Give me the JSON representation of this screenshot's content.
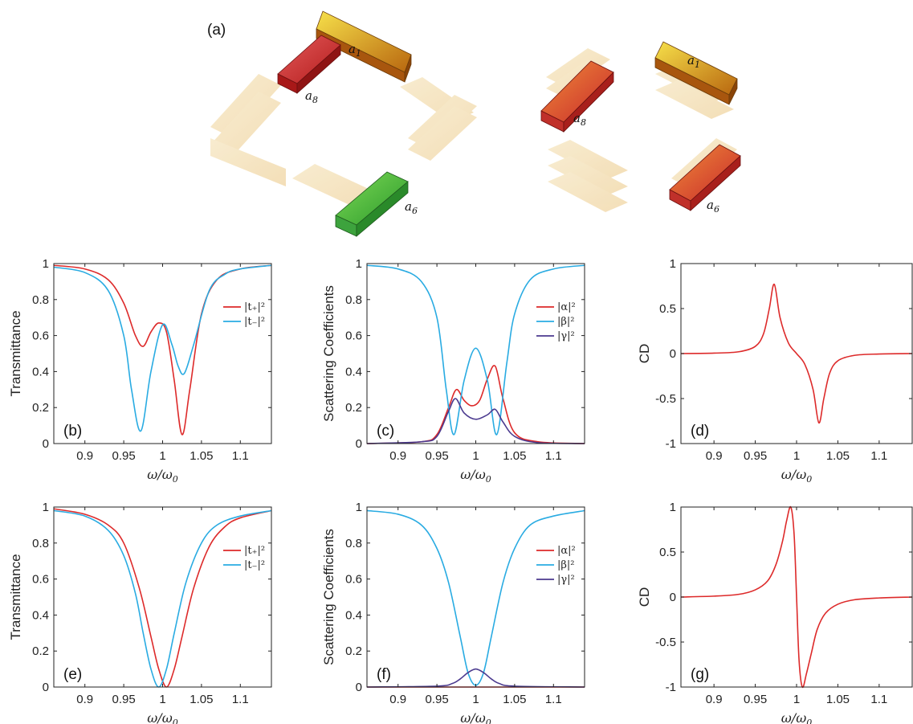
{
  "panel_a": {
    "label": "(a)",
    "bar_labels": [
      {
        "name": "a1",
        "text": "a",
        "sub": "1"
      },
      {
        "name": "a8",
        "text": "a",
        "sub": "8"
      },
      {
        "name": "a6",
        "text": "a",
        "sub": "6"
      },
      {
        "name": "a1",
        "text": "a",
        "sub": "1"
      },
      {
        "name": "a8",
        "text": "a",
        "sub": "8"
      },
      {
        "name": "a6",
        "text": "a",
        "sub": "6"
      }
    ]
  },
  "colors": {
    "red": "#dd2a2a",
    "cyan": "#29abe2",
    "purple": "#4b3a8f"
  },
  "chart_data": [
    {
      "id": "b",
      "type": "line",
      "panel_label": "(b)",
      "ylabel": "Transmittance",
      "xlabel": "ω/ω",
      "xlim": [
        0.86,
        1.14
      ],
      "ylim": [
        0,
        1
      ],
      "xticks": [
        "0.9",
        "0.95",
        "1",
        "1.05",
        "1.1"
      ],
      "yticks": [
        "0",
        "0.2",
        "0.4",
        "0.6",
        "0.8",
        "1"
      ],
      "legend": {
        "position": "right",
        "items": [
          {
            "text": "|t₊|²",
            "color": "#dd2a2a"
          },
          {
            "text": "|t₋|²",
            "color": "#29abe2"
          }
        ]
      },
      "series": [
        {
          "name": "|t₊|²",
          "color": "#dd2a2a",
          "x": [
            0.86,
            0.9,
            0.93,
            0.95,
            0.965,
            0.975,
            0.985,
            0.995,
            1.005,
            1.015,
            1.025,
            1.035,
            1.05,
            1.07,
            1.1,
            1.14
          ],
          "y": [
            0.99,
            0.97,
            0.91,
            0.78,
            0.6,
            0.54,
            0.62,
            0.67,
            0.62,
            0.35,
            0.05,
            0.3,
            0.72,
            0.91,
            0.97,
            0.99
          ]
        },
        {
          "name": "|t₋|²",
          "color": "#29abe2",
          "x": [
            0.86,
            0.9,
            0.93,
            0.95,
            0.96,
            0.972,
            0.985,
            1.0,
            1.012,
            1.02,
            1.028,
            1.04,
            1.06,
            1.08,
            1.1,
            1.14
          ],
          "y": [
            0.98,
            0.95,
            0.85,
            0.6,
            0.3,
            0.07,
            0.4,
            0.66,
            0.55,
            0.43,
            0.39,
            0.55,
            0.85,
            0.94,
            0.97,
            0.99
          ]
        }
      ]
    },
    {
      "id": "c",
      "type": "line",
      "panel_label": "(c)",
      "ylabel": "Scattering Coefficients",
      "xlabel": "ω/ω",
      "xlim": [
        0.86,
        1.14
      ],
      "ylim": [
        0,
        1
      ],
      "xticks": [
        "0.9",
        "0.95",
        "1",
        "1.05",
        "1.1"
      ],
      "yticks": [
        "0",
        "0.2",
        "0.4",
        "0.6",
        "0.8",
        "1"
      ],
      "legend": {
        "position": "right",
        "items": [
          {
            "text": "|α|²",
            "color": "#dd2a2a"
          },
          {
            "text": "|β|²",
            "color": "#29abe2"
          },
          {
            "text": "|γ|²",
            "color": "#4b3a8f"
          }
        ]
      },
      "series": [
        {
          "name": "|α|²",
          "color": "#dd2a2a",
          "x": [
            0.86,
            0.93,
            0.95,
            0.965,
            0.975,
            0.985,
            0.995,
            1.005,
            1.015,
            1.025,
            1.035,
            1.05,
            1.08,
            1.14
          ],
          "y": [
            0,
            0.01,
            0.05,
            0.2,
            0.3,
            0.24,
            0.21,
            0.24,
            0.36,
            0.43,
            0.25,
            0.06,
            0.01,
            0
          ]
        },
        {
          "name": "|β|²",
          "color": "#29abe2",
          "x": [
            0.86,
            0.9,
            0.93,
            0.95,
            0.962,
            0.972,
            0.985,
            1.0,
            1.015,
            1.027,
            1.04,
            1.05,
            1.07,
            1.1,
            1.14
          ],
          "y": [
            0.99,
            0.97,
            0.9,
            0.7,
            0.3,
            0.05,
            0.35,
            0.53,
            0.35,
            0.05,
            0.45,
            0.72,
            0.91,
            0.97,
            0.99
          ]
        },
        {
          "name": "|γ|²",
          "color": "#4b3a8f",
          "x": [
            0.86,
            0.93,
            0.95,
            0.965,
            0.974,
            0.985,
            1.0,
            1.015,
            1.025,
            1.035,
            1.05,
            1.08,
            1.14
          ],
          "y": [
            0,
            0.01,
            0.04,
            0.18,
            0.25,
            0.17,
            0.135,
            0.16,
            0.19,
            0.12,
            0.04,
            0.005,
            0
          ]
        }
      ]
    },
    {
      "id": "d",
      "type": "line",
      "panel_label": "(d)",
      "ylabel": "CD",
      "xlabel": "ω/ω",
      "xlim": [
        0.86,
        1.14
      ],
      "ylim": [
        -1,
        1
      ],
      "xticks": [
        "0.9",
        "0.95",
        "1",
        "1.05",
        "1.1"
      ],
      "yticks": [
        "-1",
        "-0.5",
        "0",
        "0.5",
        "1"
      ],
      "series": [
        {
          "name": "",
          "color": "#dd2a2a",
          "x": [
            0.86,
            0.9,
            0.93,
            0.95,
            0.96,
            0.967,
            0.973,
            0.98,
            0.99,
            1.0,
            1.01,
            1.02,
            1.027,
            1.033,
            1.04,
            1.05,
            1.07,
            1.1,
            1.14
          ],
          "y": [
            0,
            0.005,
            0.02,
            0.08,
            0.22,
            0.5,
            0.77,
            0.4,
            0.12,
            0.0,
            -0.12,
            -0.4,
            -0.77,
            -0.5,
            -0.22,
            -0.08,
            -0.02,
            -0.005,
            0
          ]
        }
      ]
    },
    {
      "id": "e",
      "type": "line",
      "panel_label": "(e)",
      "ylabel": "Transmittance",
      "xlabel": "ω/ω",
      "xlim": [
        0.86,
        1.14
      ],
      "ylim": [
        0,
        1
      ],
      "xticks": [
        "0.9",
        "0.95",
        "1",
        "1.05",
        "1.1"
      ],
      "yticks": [
        "0",
        "0.2",
        "0.4",
        "0.6",
        "0.8",
        "1"
      ],
      "legend": {
        "position": "right",
        "items": [
          {
            "text": "|t₊|²",
            "color": "#dd2a2a"
          },
          {
            "text": "|t₋|²",
            "color": "#29abe2"
          }
        ]
      },
      "series": [
        {
          "name": "|t₊|²",
          "color": "#dd2a2a",
          "x": [
            0.86,
            0.9,
            0.93,
            0.95,
            0.97,
            0.985,
            0.995,
            1.005,
            1.015,
            1.025,
            1.04,
            1.06,
            1.08,
            1.1,
            1.14
          ],
          "y": [
            0.99,
            0.96,
            0.9,
            0.8,
            0.55,
            0.28,
            0.1,
            0.0,
            0.1,
            0.28,
            0.55,
            0.78,
            0.89,
            0.94,
            0.98
          ]
        },
        {
          "name": "|t₋|²",
          "color": "#29abe2",
          "x": [
            0.86,
            0.9,
            0.93,
            0.95,
            0.965,
            0.975,
            0.985,
            0.995,
            1.005,
            1.015,
            1.03,
            1.05,
            1.07,
            1.1,
            1.14
          ],
          "y": [
            0.98,
            0.95,
            0.87,
            0.73,
            0.52,
            0.3,
            0.1,
            0.0,
            0.1,
            0.3,
            0.58,
            0.8,
            0.9,
            0.95,
            0.98
          ]
        }
      ]
    },
    {
      "id": "f",
      "type": "line",
      "panel_label": "(f)",
      "ylabel": "Scattering Coefficients",
      "xlabel": "ω/ω",
      "xlim": [
        0.86,
        1.14
      ],
      "ylim": [
        0,
        1
      ],
      "xticks": [
        "0.9",
        "0.95",
        "1",
        "1.05",
        "1.1"
      ],
      "yticks": [
        "0",
        "0.2",
        "0.4",
        "0.6",
        "0.8",
        "1"
      ],
      "legend": {
        "position": "right",
        "items": [
          {
            "text": "|α|²",
            "color": "#dd2a2a"
          },
          {
            "text": "|β|²",
            "color": "#29abe2"
          },
          {
            "text": "|γ|²",
            "color": "#4b3a8f"
          }
        ]
      },
      "series": [
        {
          "name": "|α|²",
          "color": "#dd2a2a",
          "x": [
            0.86,
            1.14
          ],
          "y": [
            0,
            0
          ]
        },
        {
          "name": "|β|²",
          "color": "#29abe2",
          "x": [
            0.86,
            0.9,
            0.93,
            0.95,
            0.965,
            0.98,
            0.99,
            1.0,
            1.01,
            1.02,
            1.035,
            1.05,
            1.07,
            1.1,
            1.14
          ],
          "y": [
            0.98,
            0.96,
            0.9,
            0.77,
            0.58,
            0.28,
            0.08,
            0.01,
            0.08,
            0.28,
            0.58,
            0.77,
            0.9,
            0.95,
            0.98
          ]
        },
        {
          "name": "|γ|²",
          "color": "#4b3a8f",
          "x": [
            0.86,
            0.95,
            0.97,
            0.98,
            0.99,
            1.0,
            1.01,
            1.02,
            1.03,
            1.05,
            1.14
          ],
          "y": [
            0,
            0.005,
            0.02,
            0.045,
            0.08,
            0.1,
            0.08,
            0.045,
            0.02,
            0.005,
            0
          ]
        }
      ]
    },
    {
      "id": "g",
      "type": "line",
      "panel_label": "(g)",
      "ylabel": "CD",
      "xlabel": "ω/ω",
      "xlim": [
        0.86,
        1.14
      ],
      "ylim": [
        -1,
        1
      ],
      "xticks": [
        "0.9",
        "0.95",
        "1",
        "1.05",
        "1.1"
      ],
      "yticks": [
        "-1",
        "-0.5",
        "0",
        "0.5",
        "1"
      ],
      "series": [
        {
          "name": "",
          "color": "#dd2a2a",
          "x": [
            0.86,
            0.9,
            0.93,
            0.95,
            0.965,
            0.975,
            0.983,
            0.988,
            0.993,
            0.997,
            1.0,
            1.003,
            1.007,
            1.012,
            1.018,
            1.025,
            1.035,
            1.05,
            1.07,
            1.1,
            1.14
          ],
          "y": [
            0,
            0.01,
            0.03,
            0.08,
            0.18,
            0.36,
            0.62,
            0.85,
            1.0,
            0.7,
            0.0,
            -0.7,
            -1.0,
            -0.85,
            -0.62,
            -0.36,
            -0.18,
            -0.08,
            -0.03,
            -0.01,
            0
          ]
        }
      ]
    }
  ]
}
